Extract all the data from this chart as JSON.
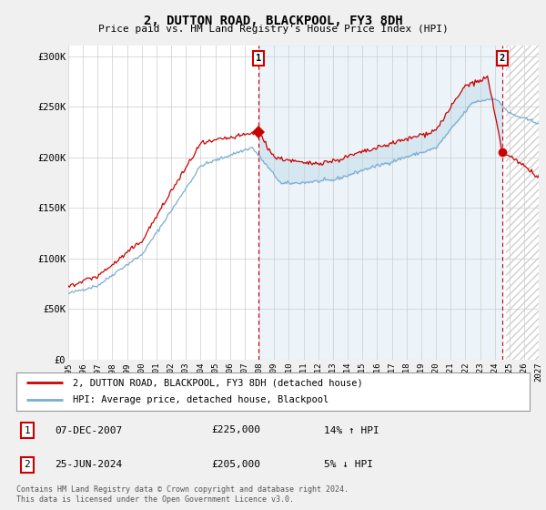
{
  "title": "2, DUTTON ROAD, BLACKPOOL, FY3 8DH",
  "subtitle": "Price paid vs. HM Land Registry's House Price Index (HPI)",
  "ylim": [
    0,
    310000
  ],
  "yticks": [
    0,
    50000,
    100000,
    150000,
    200000,
    250000,
    300000
  ],
  "ytick_labels": [
    "£0",
    "£50K",
    "£100K",
    "£150K",
    "£200K",
    "£250K",
    "£300K"
  ],
  "bg_color": "#f0f0f0",
  "plot_bg_color": "#ffffff",
  "grid_color": "#cccccc",
  "red_color": "#cc0000",
  "blue_color": "#7aadd4",
  "fill_color": "#d0e4f0",
  "legend_entry1": "2, DUTTON ROAD, BLACKPOOL, FY3 8DH (detached house)",
  "legend_entry2": "HPI: Average price, detached house, Blackpool",
  "sale1_date": "07-DEC-2007",
  "sale1_price": "£225,000",
  "sale1_hpi": "14% ↑ HPI",
  "sale1_year": 2007.92,
  "sale1_value": 225000,
  "sale2_date": "25-JUN-2024",
  "sale2_price": "£205,000",
  "sale2_hpi": "5% ↓ HPI",
  "sale2_year": 2024.5,
  "sale2_value": 205000,
  "footer": "Contains HM Land Registry data © Crown copyright and database right 2024.\nThis data is licensed under the Open Government Licence v3.0.",
  "xmin": 1995,
  "xmax": 2027,
  "hatch_start": 2024.75,
  "xticks": [
    1995,
    1996,
    1997,
    1998,
    1999,
    2000,
    2001,
    2002,
    2003,
    2004,
    2005,
    2006,
    2007,
    2008,
    2009,
    2010,
    2011,
    2012,
    2013,
    2014,
    2015,
    2016,
    2017,
    2018,
    2019,
    2020,
    2021,
    2022,
    2023,
    2024,
    2025,
    2026,
    2027
  ]
}
